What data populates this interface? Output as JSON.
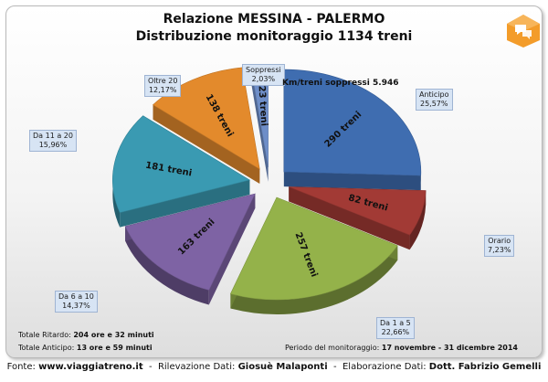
{
  "chart_data": {
    "type": "pie",
    "title": "Relazione MESSINA - PALERMO",
    "subtitle": "Distribuzione monitoraggio 1134 treni",
    "categories": [
      "Anticipo",
      "Orario",
      "Da 1 a 5",
      "Da 6 a 10",
      "Da 11 a 20",
      "Oltre 20",
      "Soppressi"
    ],
    "values": [
      290,
      82,
      257,
      163,
      181,
      138,
      23
    ],
    "percent_labels": [
      "25,57%",
      "7,23%",
      "22,66%",
      "14,37%",
      "15,96%",
      "12,17%",
      "2,03%"
    ],
    "slice_labels": [
      "290 treni",
      "82 treni",
      "257 treni",
      "163 treni",
      "181 treni",
      "138 treni",
      "23 treni"
    ],
    "colors": [
      "#3f6db0",
      "#a23a35",
      "#94b24a",
      "#7e63a4",
      "#3a9ab2",
      "#e38a2c",
      "#6e8ec8"
    ],
    "legend": "none",
    "exploded": true
  },
  "notes": {
    "km_soppressi": "Km/treni soppressi 5.946",
    "totale_ritardo_label": "Totale Ritardo:",
    "totale_ritardo_value": "204 ore e 32 minuti",
    "totale_anticipo_label": "Totale Anticipo:",
    "totale_anticipo_value": "13 ore e 59 minuti",
    "periodo_label": "Periodo del monitoraggio:",
    "periodo_value": "17 novembre - 31 dicembre 2014"
  },
  "footer": {
    "fonte_label": "Fonte:",
    "fonte_value": "www.viaggiatreno.it",
    "sep1": "-",
    "rilevazione_label": "Rilevazione Dati:",
    "rilevazione_value": "Giosuè Malaponti",
    "sep2": "-",
    "elaborazione_label": "Elaborazione Dati:",
    "elaborazione_value": "Dott. Fabrizio Gemelli"
  },
  "logo": {
    "icon": "speech-bubble-icon",
    "color": "#f39c2a"
  }
}
